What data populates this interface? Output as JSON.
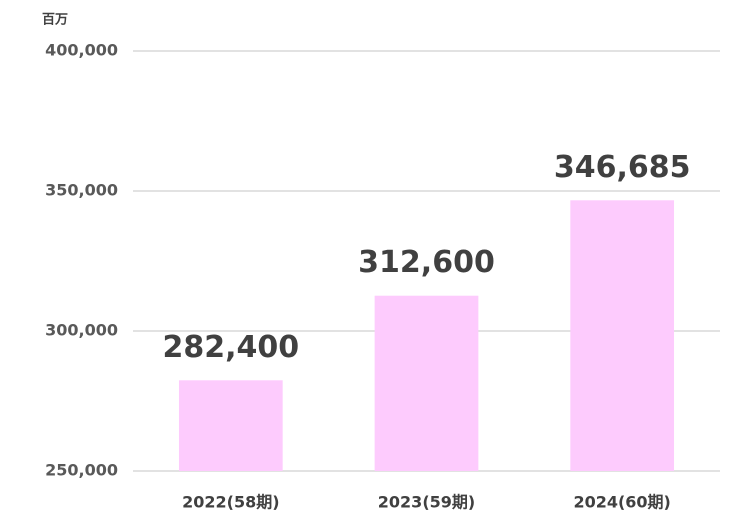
{
  "chart_data": {
    "type": "bar",
    "ylabel": "百万",
    "categories": [
      "2022(58期)",
      "2023(59期)",
      "2024(60期)"
    ],
    "values": [
      282400,
      312600,
      346685
    ],
    "value_labels": [
      "282,400",
      "312,600",
      "346,685"
    ],
    "color": "#fdcbfd",
    "ylim": [
      250000,
      400000
    ],
    "yticks": [
      {
        "value": 250000,
        "label": "250,000"
      },
      {
        "value": 300000,
        "label": "300,000"
      },
      {
        "value": 350000,
        "label": "350,000"
      },
      {
        "value": 400000,
        "label": "400,000"
      }
    ],
    "grid": true
  }
}
